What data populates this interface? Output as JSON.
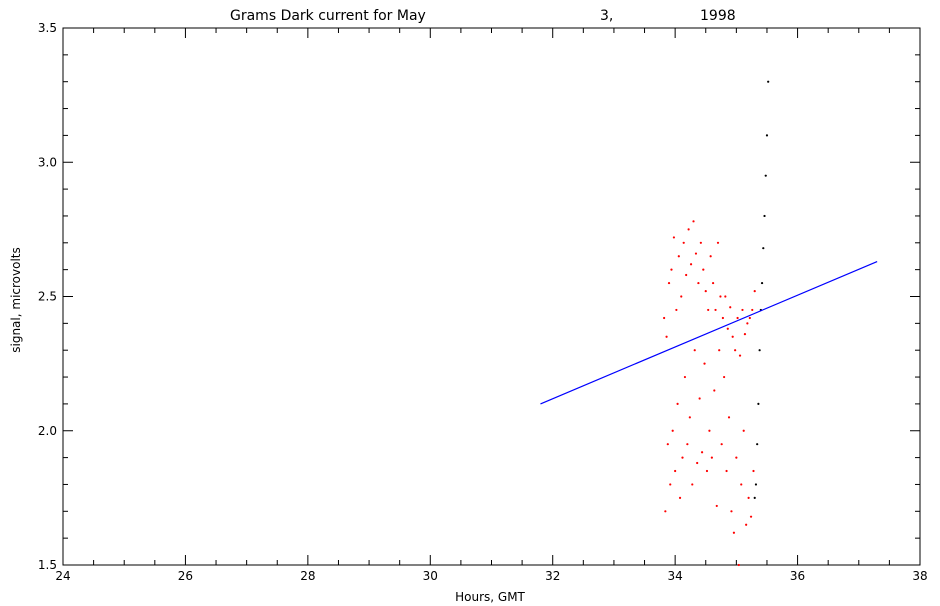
{
  "chart_data": {
    "type": "scatter",
    "title_parts": [
      "Grams Dark current for May",
      "3,",
      "1998"
    ],
    "xlabel": "Hours, GMT",
    "ylabel": "signal, microvolts",
    "xlim": [
      24,
      38
    ],
    "ylim": [
      1.5,
      3.5
    ],
    "x_ticks": [
      "24",
      "26",
      "28",
      "30",
      "32",
      "34",
      "36",
      "38"
    ],
    "y_ticks": [
      "1.5",
      "2.0",
      "2.5",
      "3.0",
      "3.5"
    ],
    "grid": false,
    "legend": "none",
    "colors": {
      "red_series": "#ff0000",
      "black_series": "#000000",
      "fit_line": "#0000ff",
      "axes": "#000000"
    },
    "series": [
      {
        "color": "red",
        "points": [
          [
            33.82,
            2.42
          ],
          [
            33.84,
            1.7
          ],
          [
            33.86,
            2.35
          ],
          [
            33.88,
            1.95
          ],
          [
            33.9,
            2.55
          ],
          [
            33.92,
            1.8
          ],
          [
            33.94,
            2.6
          ],
          [
            33.96,
            2.0
          ],
          [
            33.98,
            2.72
          ],
          [
            34.0,
            1.85
          ],
          [
            34.02,
            2.45
          ],
          [
            34.04,
            2.1
          ],
          [
            34.06,
            2.65
          ],
          [
            34.08,
            1.75
          ],
          [
            34.1,
            2.5
          ],
          [
            34.12,
            1.9
          ],
          [
            34.14,
            2.7
          ],
          [
            34.16,
            2.2
          ],
          [
            34.18,
            2.58
          ],
          [
            34.2,
            1.95
          ],
          [
            34.22,
            2.75
          ],
          [
            34.24,
            2.05
          ],
          [
            34.26,
            2.62
          ],
          [
            34.28,
            1.8
          ],
          [
            34.3,
            2.78
          ],
          [
            34.32,
            2.3
          ],
          [
            34.34,
            2.66
          ],
          [
            34.36,
            1.88
          ],
          [
            34.38,
            2.55
          ],
          [
            34.4,
            2.12
          ],
          [
            34.42,
            2.7
          ],
          [
            34.44,
            1.92
          ],
          [
            34.46,
            2.6
          ],
          [
            34.48,
            2.25
          ],
          [
            34.5,
            2.52
          ],
          [
            34.52,
            1.85
          ],
          [
            34.54,
            2.45
          ],
          [
            34.56,
            2.0
          ],
          [
            34.58,
            2.65
          ],
          [
            34.6,
            1.9
          ],
          [
            34.62,
            2.55
          ],
          [
            34.64,
            2.15
          ],
          [
            34.66,
            2.45
          ],
          [
            34.68,
            1.72
          ],
          [
            34.7,
            2.7
          ],
          [
            34.72,
            2.3
          ],
          [
            34.74,
            2.5
          ],
          [
            34.76,
            1.95
          ],
          [
            34.78,
            2.42
          ],
          [
            34.8,
            2.2
          ],
          [
            34.82,
            2.5
          ],
          [
            34.84,
            1.85
          ],
          [
            34.86,
            2.38
          ],
          [
            34.88,
            2.05
          ],
          [
            34.9,
            2.46
          ],
          [
            34.92,
            1.7
          ],
          [
            34.94,
            2.35
          ],
          [
            34.96,
            1.62
          ],
          [
            34.98,
            2.3
          ],
          [
            35.0,
            1.9
          ],
          [
            35.02,
            2.42
          ],
          [
            35.04,
            1.5
          ],
          [
            35.06,
            2.28
          ],
          [
            35.08,
            1.8
          ],
          [
            35.1,
            2.45
          ],
          [
            35.12,
            2.0
          ],
          [
            35.14,
            2.36
          ],
          [
            35.16,
            1.65
          ],
          [
            35.18,
            2.4
          ],
          [
            35.2,
            1.75
          ],
          [
            35.22,
            2.42
          ],
          [
            35.24,
            1.68
          ],
          [
            35.26,
            2.45
          ],
          [
            35.28,
            1.85
          ],
          [
            35.3,
            2.52
          ]
        ]
      },
      {
        "color": "black",
        "points": [
          [
            35.3,
            1.75
          ],
          [
            35.32,
            1.8
          ],
          [
            35.34,
            1.95
          ],
          [
            35.36,
            2.1
          ],
          [
            35.38,
            2.3
          ],
          [
            35.4,
            2.45
          ],
          [
            35.42,
            2.55
          ],
          [
            35.44,
            2.68
          ],
          [
            35.46,
            2.8
          ],
          [
            35.48,
            2.95
          ],
          [
            35.5,
            3.1
          ],
          [
            35.52,
            3.3
          ]
        ]
      }
    ],
    "fit_line": {
      "x": [
        31.8,
        37.3
      ],
      "y": [
        2.1,
        2.63
      ]
    }
  }
}
